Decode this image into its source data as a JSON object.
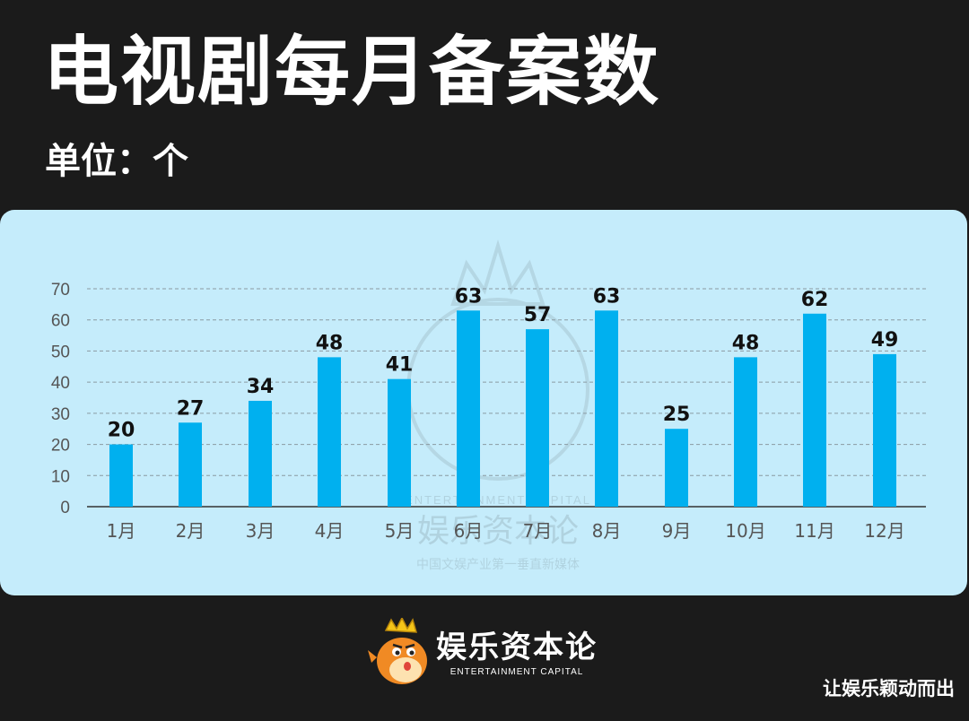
{
  "header": {
    "title": "电视剧每月备案数",
    "unit": "单位：个"
  },
  "footer": {
    "brand_name": "娱乐资本论",
    "brand_en": "ENTERTAINMENT CAPITAL",
    "credit": "让娱乐颖动而出"
  },
  "watermark": {
    "brand_en": "ENTERTAINMENT CAPITAL",
    "brand_name": "娱乐资本论",
    "tagline": "中国文娱产业第一垂直新媒体"
  },
  "colors": {
    "background": "#1b1b1b",
    "panel": "#c5ecfb",
    "bar": "#00b0ef",
    "gridline": "#8a9aa2",
    "axis_text": "#555555",
    "label_text": "#111111"
  },
  "chart_data": {
    "type": "bar",
    "categories": [
      "1月",
      "2月",
      "3月",
      "4月",
      "5月",
      "6月",
      "7月",
      "8月",
      "9月",
      "10月",
      "11月",
      "12月"
    ],
    "values": [
      20,
      27,
      34,
      48,
      41,
      63,
      57,
      63,
      25,
      48,
      62,
      49
    ],
    "ylim": [
      0,
      70
    ],
    "yticks": [
      0,
      10,
      20,
      30,
      40,
      50,
      60,
      70
    ],
    "grid": true,
    "data_labels": true
  }
}
